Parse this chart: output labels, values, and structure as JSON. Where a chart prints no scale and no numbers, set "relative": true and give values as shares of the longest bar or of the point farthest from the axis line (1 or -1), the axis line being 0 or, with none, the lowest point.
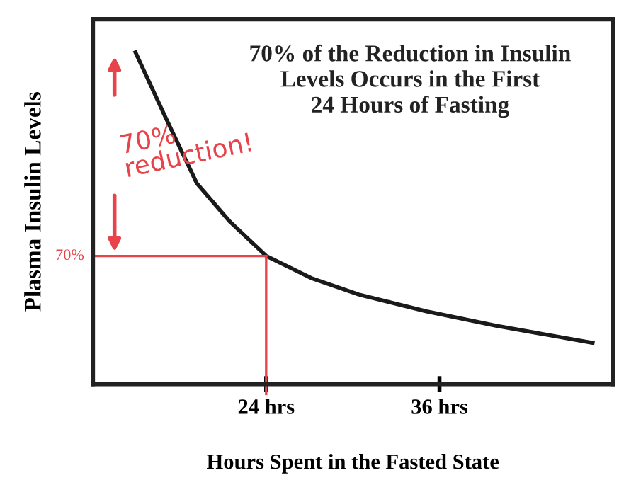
{
  "chart_data": {
    "type": "line",
    "title": "70% of the Reduction in Insulin\nLevels Occurs in the First\n24 Hours of Fasting",
    "xlabel": "Hours Spent in the Fasted State",
    "ylabel": "Plasma Insulin Levels",
    "relative": true,
    "xlim": [
      12,
      48
    ],
    "xticks": [
      {
        "value": 24,
        "label": "24 hrs"
      },
      {
        "value": 36,
        "label": "36 hrs"
      }
    ],
    "series": [
      {
        "color": "#1a1a1a",
        "x": [
          14.95,
          17.0,
          19.2,
          21.5,
          24,
          27.2,
          30.4,
          35.1,
          39.9,
          46.6
        ],
        "values": [
          1,
          0.807,
          0.605,
          0.489,
          0.386,
          0.318,
          0.27,
          0.219,
          0.176,
          0.124
        ]
      }
    ],
    "ref_lines": [
      {
        "axis": "y",
        "value": 0.386,
        "color": "#e8434a"
      },
      {
        "axis": "x",
        "value": 24,
        "color": "#e8434a"
      }
    ],
    "annotations": [
      "70%\nreduction!",
      "70%"
    ],
    "grid": false,
    "marker": "none",
    "line_style": "solid"
  }
}
